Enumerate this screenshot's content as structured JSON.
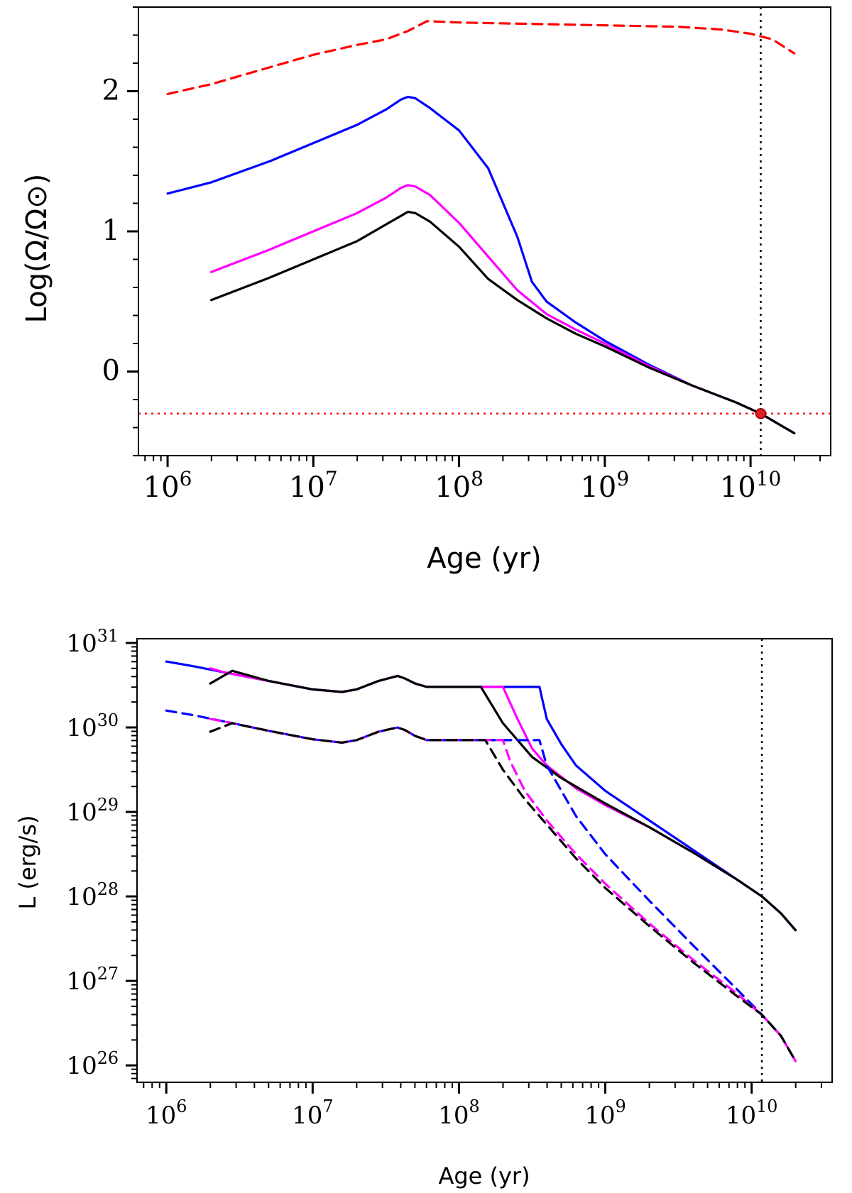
{
  "chart_data": [
    {
      "type": "line",
      "xscale": "log",
      "xlabel": "Age (yr)",
      "ylabel": "Log(Ω/Ω⊙)",
      "xlim": [
        5.8,
        10.55
      ],
      "ylim": [
        -0.6,
        2.6
      ],
      "xticks": [
        {
          "value": 6,
          "base": "10",
          "exp": "6"
        },
        {
          "value": 7,
          "base": "10",
          "exp": "7"
        },
        {
          "value": 8,
          "base": "10",
          "exp": "8"
        },
        {
          "value": 9,
          "base": "10",
          "exp": "9"
        },
        {
          "value": 10,
          "base": "10",
          "exp": "10"
        }
      ],
      "yticks": [
        {
          "value": 0,
          "label": "0"
        },
        {
          "value": 1,
          "label": "1"
        },
        {
          "value": 2,
          "label": "2"
        }
      ],
      "vlines": [
        {
          "x": 10.07,
          "color": "#000000",
          "dash": "dotted"
        }
      ],
      "hlines": [
        {
          "y": -0.3,
          "color": "#ff0000",
          "dash": "dotted"
        }
      ],
      "markers": [
        {
          "x": 10.07,
          "y": -0.3,
          "color": "#e02020"
        }
      ],
      "series": [
        {
          "name": "red-dashed",
          "color": "#ff0000",
          "dash": "dashed",
          "x": [
            6.0,
            6.3,
            6.7,
            7.0,
            7.3,
            7.5,
            7.65,
            7.78,
            8.0,
            8.5,
            9.0,
            9.5,
            9.8,
            10.0,
            10.15,
            10.3
          ],
          "y": [
            1.98,
            2.05,
            2.17,
            2.26,
            2.33,
            2.37,
            2.43,
            2.5,
            2.49,
            2.48,
            2.47,
            2.46,
            2.44,
            2.41,
            2.37,
            2.27
          ]
        },
        {
          "name": "blue",
          "color": "#0000ff",
          "dash": "solid",
          "x": [
            6.0,
            6.3,
            6.7,
            7.0,
            7.3,
            7.5,
            7.6,
            7.65,
            7.7,
            7.8,
            8.0,
            8.2,
            8.4,
            8.5,
            8.6,
            8.8,
            9.0,
            9.3,
            9.6,
            9.9,
            10.07,
            10.2,
            10.3
          ],
          "y": [
            1.27,
            1.35,
            1.5,
            1.63,
            1.76,
            1.87,
            1.94,
            1.96,
            1.95,
            1.88,
            1.72,
            1.45,
            0.96,
            0.64,
            0.5,
            0.35,
            0.22,
            0.05,
            -0.1,
            -0.22,
            -0.3,
            -0.38,
            -0.44
          ]
        },
        {
          "name": "magenta",
          "color": "#ff00ff",
          "dash": "solid",
          "x": [
            6.3,
            6.7,
            7.0,
            7.3,
            7.5,
            7.6,
            7.65,
            7.7,
            7.8,
            8.0,
            8.2,
            8.4,
            8.6,
            8.8,
            9.0,
            9.3,
            9.6,
            9.9,
            10.07,
            10.2,
            10.3
          ],
          "y": [
            0.71,
            0.87,
            1.0,
            1.13,
            1.24,
            1.31,
            1.33,
            1.32,
            1.26,
            1.06,
            0.82,
            0.58,
            0.41,
            0.3,
            0.2,
            0.04,
            -0.1,
            -0.22,
            -0.3,
            -0.38,
            -0.44
          ]
        },
        {
          "name": "black",
          "color": "#000000",
          "dash": "solid",
          "x": [
            6.3,
            6.7,
            7.0,
            7.3,
            7.5,
            7.6,
            7.65,
            7.7,
            7.8,
            8.0,
            8.2,
            8.4,
            8.6,
            8.8,
            9.0,
            9.3,
            9.6,
            9.9,
            10.07,
            10.2,
            10.3
          ],
          "y": [
            0.51,
            0.67,
            0.8,
            0.93,
            1.05,
            1.11,
            1.14,
            1.13,
            1.07,
            0.89,
            0.66,
            0.51,
            0.38,
            0.27,
            0.18,
            0.03,
            -0.1,
            -0.22,
            -0.3,
            -0.38,
            -0.44
          ]
        }
      ]
    },
    {
      "type": "line",
      "xscale": "log",
      "yscale": "log",
      "xlabel": "Age (yr)",
      "ylabel": "L (erg/s)",
      "xlim": [
        5.8,
        10.55
      ],
      "ylim": [
        25.8,
        31.05
      ],
      "xticks": [
        {
          "value": 6,
          "base": "10",
          "exp": "6"
        },
        {
          "value": 7,
          "base": "10",
          "exp": "7"
        },
        {
          "value": 8,
          "base": "10",
          "exp": "8"
        },
        {
          "value": 9,
          "base": "10",
          "exp": "9"
        },
        {
          "value": 10,
          "base": "10",
          "exp": "10"
        }
      ],
      "yticks": [
        {
          "value": 26,
          "base": "10",
          "exp": "26"
        },
        {
          "value": 27,
          "base": "10",
          "exp": "27"
        },
        {
          "value": 28,
          "base": "10",
          "exp": "28"
        },
        {
          "value": 29,
          "base": "10",
          "exp": "29"
        },
        {
          "value": 30,
          "base": "10",
          "exp": "30"
        },
        {
          "value": 31,
          "base": "10",
          "exp": "31"
        }
      ],
      "vlines": [
        {
          "x": 10.07,
          "color": "#000000",
          "dash": "dotted"
        }
      ],
      "series": [
        {
          "name": "blue-solid",
          "color": "#0000ff",
          "dash": "solid",
          "x": [
            6.0,
            6.2,
            6.4,
            6.7,
            7.0,
            7.2,
            7.3,
            7.45,
            7.58,
            7.63,
            7.7,
            7.78,
            8.0,
            8.3,
            8.55,
            8.6,
            8.7,
            8.8,
            9.0,
            9.3,
            9.6,
            9.9,
            10.07,
            10.2,
            10.3
          ],
          "y": [
            30.78,
            30.72,
            30.65,
            30.55,
            30.45,
            30.42,
            30.45,
            30.55,
            30.61,
            30.58,
            30.52,
            30.48,
            30.48,
            30.48,
            30.48,
            30.1,
            29.8,
            29.55,
            29.25,
            28.9,
            28.55,
            28.2,
            28.0,
            27.8,
            27.6
          ]
        },
        {
          "name": "magenta-solid",
          "color": "#ff00ff",
          "dash": "solid",
          "x": [
            6.3,
            6.4,
            6.7,
            7.0,
            7.2,
            7.3,
            7.45,
            7.58,
            7.63,
            7.7,
            7.78,
            8.0,
            8.3,
            8.4,
            8.5,
            8.6,
            8.8,
            9.0,
            9.3,
            9.6,
            9.9,
            10.07,
            10.2,
            10.3
          ],
          "y": [
            30.7,
            30.65,
            30.55,
            30.45,
            30.42,
            30.45,
            30.55,
            30.61,
            30.58,
            30.52,
            30.48,
            30.48,
            30.48,
            30.1,
            29.75,
            29.55,
            29.28,
            29.08,
            28.82,
            28.52,
            28.2,
            28.0,
            27.8,
            27.6
          ]
        },
        {
          "name": "black-solid",
          "color": "#000000",
          "dash": "solid",
          "x": [
            6.3,
            6.45,
            6.7,
            7.0,
            7.2,
            7.3,
            7.45,
            7.58,
            7.63,
            7.7,
            7.78,
            8.0,
            8.15,
            8.3,
            8.5,
            8.7,
            9.0,
            9.3,
            9.6,
            9.9,
            10.07,
            10.2,
            10.3
          ],
          "y": [
            30.52,
            30.67,
            30.55,
            30.45,
            30.42,
            30.45,
            30.55,
            30.61,
            30.58,
            30.52,
            30.48,
            30.48,
            30.48,
            30.05,
            29.65,
            29.4,
            29.1,
            28.82,
            28.52,
            28.2,
            28.0,
            27.8,
            27.6
          ]
        },
        {
          "name": "blue-dashed",
          "color": "#0000ff",
          "dash": "dashed",
          "x": [
            6.0,
            6.2,
            6.4,
            6.7,
            7.0,
            7.2,
            7.3,
            7.45,
            7.58,
            7.63,
            7.7,
            7.78,
            8.0,
            8.3,
            8.55,
            8.6,
            8.7,
            8.8,
            9.0,
            9.3,
            9.6,
            9.9,
            10.07,
            10.2,
            10.3
          ],
          "y": [
            30.2,
            30.14,
            30.07,
            29.96,
            29.86,
            29.82,
            29.85,
            29.95,
            30.0,
            29.97,
            29.9,
            29.85,
            29.85,
            29.85,
            29.85,
            29.55,
            29.25,
            28.95,
            28.5,
            27.95,
            27.42,
            26.9,
            26.6,
            26.35,
            26.05
          ]
        },
        {
          "name": "magenta-dashed",
          "color": "#ff00ff",
          "dash": "dashed",
          "x": [
            6.3,
            6.4,
            6.7,
            7.0,
            7.2,
            7.3,
            7.45,
            7.58,
            7.63,
            7.7,
            7.78,
            8.0,
            8.3,
            8.35,
            8.45,
            8.6,
            8.8,
            9.0,
            9.3,
            9.6,
            9.9,
            10.07,
            10.2,
            10.3
          ],
          "y": [
            30.1,
            30.07,
            29.96,
            29.86,
            29.82,
            29.85,
            29.95,
            30.0,
            29.97,
            29.9,
            29.85,
            29.85,
            29.85,
            29.6,
            29.25,
            28.9,
            28.5,
            28.15,
            27.68,
            27.25,
            26.85,
            26.6,
            26.35,
            26.05
          ]
        },
        {
          "name": "black-dashed",
          "color": "#000000",
          "dash": "dashed",
          "x": [
            6.3,
            6.45,
            6.7,
            7.0,
            7.2,
            7.3,
            7.45,
            7.58,
            7.63,
            7.7,
            7.78,
            8.0,
            8.18,
            8.3,
            8.45,
            8.6,
            8.8,
            9.0,
            9.3,
            9.6,
            9.9,
            10.07,
            10.2,
            10.3
          ],
          "y": [
            29.95,
            30.05,
            29.96,
            29.86,
            29.82,
            29.85,
            29.95,
            30.0,
            29.97,
            29.9,
            29.85,
            29.85,
            29.85,
            29.5,
            29.15,
            28.85,
            28.45,
            28.1,
            27.65,
            27.22,
            26.82,
            26.6,
            26.35,
            26.05
          ]
        }
      ]
    }
  ]
}
